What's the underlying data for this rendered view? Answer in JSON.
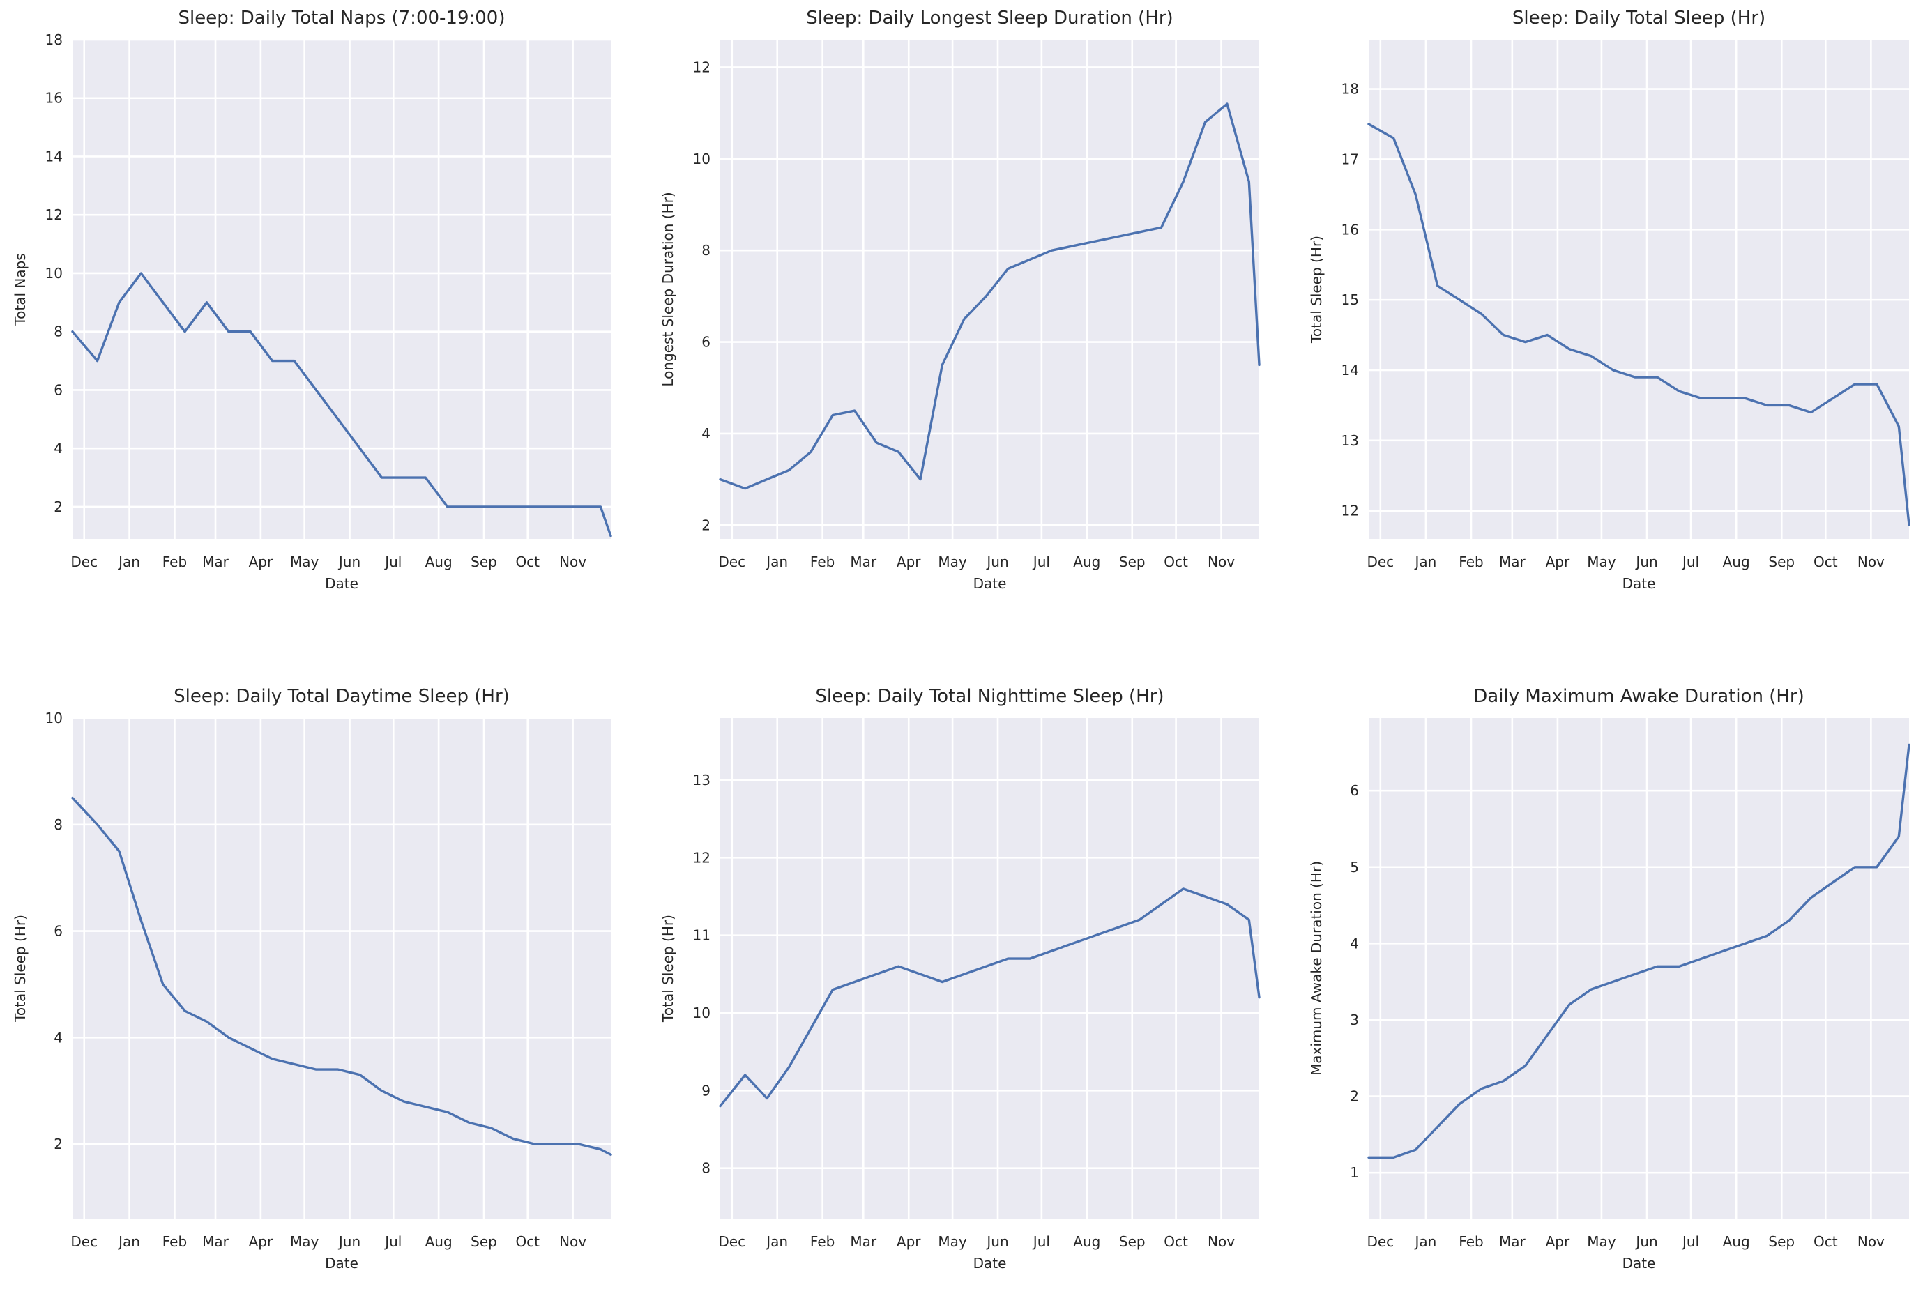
{
  "figure": {
    "background": "#ffffff",
    "plot_background": "#eaeaf2",
    "grid_color": "#ffffff",
    "line_color": "#4c72b0"
  },
  "chart_data": [
    {
      "type": "line",
      "title": "Sleep: Daily Total Naps (7:00-19:00)",
      "xlabel": "Date",
      "ylabel": "Total Naps",
      "xticks": [
        "Dec",
        "Jan",
        "Feb",
        "Mar",
        "Apr",
        "May",
        "Jun",
        "Jul",
        "Aug",
        "Sep",
        "Oct",
        "Nov"
      ],
      "xlim": [
        "2020-11-23",
        "2021-11-27"
      ],
      "yticks": [
        2,
        4,
        6,
        8,
        10,
        12,
        14,
        16,
        18
      ],
      "ylim": [
        0.9,
        18.0
      ],
      "grid": true,
      "series": [
        {
          "x": [
            "2020-11-23",
            "2020-12-10",
            "2020-12-25",
            "2021-01-09",
            "2021-01-24",
            "2021-02-08",
            "2021-02-23",
            "2021-03-10",
            "2021-03-25",
            "2021-04-09",
            "2021-04-24",
            "2021-05-09",
            "2021-05-24",
            "2021-06-08",
            "2021-06-23",
            "2021-07-08",
            "2021-07-23",
            "2021-08-07",
            "2021-08-22",
            "2021-09-06",
            "2021-09-21",
            "2021-10-06",
            "2021-10-21",
            "2021-11-05",
            "2021-11-20",
            "2021-11-27"
          ],
          "y": [
            8,
            7,
            9,
            10,
            9,
            8,
            9,
            8,
            8,
            7,
            7,
            6,
            5,
            4,
            3,
            3,
            3,
            2,
            2,
            2,
            2,
            2,
            2,
            2,
            2,
            1
          ]
        }
      ]
    },
    {
      "type": "line",
      "title": "Sleep: Daily Longest Sleep Duration (Hr)",
      "xlabel": "Date",
      "ylabel": "Longest Sleep Duration (Hr)",
      "xticks": [
        "Dec",
        "Jan",
        "Feb",
        "Mar",
        "Apr",
        "May",
        "Jun",
        "Jul",
        "Aug",
        "Sep",
        "Oct",
        "Nov"
      ],
      "xlim": [
        "2020-11-23",
        "2021-11-27"
      ],
      "yticks": [
        2,
        4,
        6,
        8,
        10,
        12
      ],
      "ylim": [
        1.7,
        12.6
      ],
      "grid": true,
      "series": [
        {
          "x": [
            "2020-11-23",
            "2020-12-10",
            "2020-12-25",
            "2021-01-09",
            "2021-01-24",
            "2021-02-08",
            "2021-02-23",
            "2021-03-10",
            "2021-03-25",
            "2021-04-09",
            "2021-04-24",
            "2021-05-09",
            "2021-05-24",
            "2021-06-08",
            "2021-06-23",
            "2021-07-08",
            "2021-07-23",
            "2021-08-07",
            "2021-08-22",
            "2021-09-06",
            "2021-09-21",
            "2021-10-06",
            "2021-10-21",
            "2021-11-05",
            "2021-11-20",
            "2021-11-27"
          ],
          "y": [
            3.0,
            2.8,
            3.0,
            3.2,
            3.6,
            4.4,
            4.5,
            3.8,
            3.6,
            3.0,
            5.5,
            6.5,
            7.0,
            7.6,
            7.8,
            8.0,
            8.1,
            8.2,
            8.3,
            8.4,
            8.5,
            9.5,
            10.8,
            11.2,
            9.5,
            5.5
          ]
        }
      ]
    },
    {
      "type": "line",
      "title": "Sleep: Daily Total Sleep (Hr)",
      "xlabel": "Date",
      "ylabel": "Total Sleep (Hr)",
      "xticks": [
        "Dec",
        "Jan",
        "Feb",
        "Mar",
        "Apr",
        "May",
        "Jun",
        "Jul",
        "Aug",
        "Sep",
        "Oct",
        "Nov"
      ],
      "xlim": [
        "2020-11-23",
        "2021-11-27"
      ],
      "yticks": [
        12,
        13,
        14,
        15,
        16,
        17,
        18
      ],
      "ylim": [
        11.6,
        18.7
      ],
      "grid": true,
      "series": [
        {
          "x": [
            "2020-11-23",
            "2020-12-10",
            "2020-12-25",
            "2021-01-09",
            "2021-01-24",
            "2021-02-08",
            "2021-02-23",
            "2021-03-10",
            "2021-03-25",
            "2021-04-09",
            "2021-04-24",
            "2021-05-09",
            "2021-05-24",
            "2021-06-08",
            "2021-06-23",
            "2021-07-08",
            "2021-07-23",
            "2021-08-07",
            "2021-08-22",
            "2021-09-06",
            "2021-09-21",
            "2021-10-06",
            "2021-10-21",
            "2021-11-05",
            "2021-11-20",
            "2021-11-27"
          ],
          "y": [
            17.5,
            17.3,
            16.5,
            15.2,
            15.0,
            14.8,
            14.5,
            14.4,
            14.5,
            14.3,
            14.2,
            14.0,
            13.9,
            13.9,
            13.7,
            13.6,
            13.6,
            13.6,
            13.5,
            13.5,
            13.4,
            13.6,
            13.8,
            13.8,
            13.2,
            11.8
          ]
        }
      ]
    },
    {
      "type": "line",
      "title": "Sleep: Daily Total Daytime Sleep (Hr)",
      "xlabel": "Date",
      "ylabel": "Total Sleep (Hr)",
      "xticks": [
        "Dec",
        "Jan",
        "Feb",
        "Mar",
        "Apr",
        "May",
        "Jun",
        "Jul",
        "Aug",
        "Sep",
        "Oct",
        "Nov"
      ],
      "xlim": [
        "2020-11-23",
        "2021-11-27"
      ],
      "yticks": [
        2,
        4,
        6,
        8,
        10
      ],
      "ylim": [
        0.6,
        10.0
      ],
      "grid": true,
      "series": [
        {
          "x": [
            "2020-11-23",
            "2020-12-10",
            "2020-12-25",
            "2021-01-09",
            "2021-01-24",
            "2021-02-08",
            "2021-02-23",
            "2021-03-10",
            "2021-03-25",
            "2021-04-09",
            "2021-04-24",
            "2021-05-09",
            "2021-05-24",
            "2021-06-08",
            "2021-06-23",
            "2021-07-08",
            "2021-07-23",
            "2021-08-07",
            "2021-08-22",
            "2021-09-06",
            "2021-09-21",
            "2021-10-06",
            "2021-10-21",
            "2021-11-05",
            "2021-11-20",
            "2021-11-27"
          ],
          "y": [
            8.5,
            8.0,
            7.5,
            6.2,
            5.0,
            4.5,
            4.3,
            4.0,
            3.8,
            3.6,
            3.5,
            3.4,
            3.4,
            3.3,
            3.0,
            2.8,
            2.7,
            2.6,
            2.4,
            2.3,
            2.1,
            2.0,
            2.0,
            2.0,
            1.9,
            1.8
          ]
        }
      ]
    },
    {
      "type": "line",
      "title": "Sleep: Daily Total Nighttime Sleep (Hr)",
      "xlabel": "Date",
      "ylabel": "Total Sleep (Hr)",
      "xticks": [
        "Dec",
        "Jan",
        "Feb",
        "Mar",
        "Apr",
        "May",
        "Jun",
        "Jul",
        "Aug",
        "Sep",
        "Oct",
        "Nov"
      ],
      "xlim": [
        "2020-11-23",
        "2021-11-27"
      ],
      "yticks": [
        8,
        9,
        10,
        11,
        12,
        13
      ],
      "ylim": [
        7.35,
        13.8
      ],
      "grid": true,
      "series": [
        {
          "x": [
            "2020-11-23",
            "2020-12-10",
            "2020-12-25",
            "2021-01-09",
            "2021-01-24",
            "2021-02-08",
            "2021-02-23",
            "2021-03-10",
            "2021-03-25",
            "2021-04-09",
            "2021-04-24",
            "2021-05-09",
            "2021-05-24",
            "2021-06-08",
            "2021-06-23",
            "2021-07-08",
            "2021-07-23",
            "2021-08-07",
            "2021-08-22",
            "2021-09-06",
            "2021-09-21",
            "2021-10-06",
            "2021-10-21",
            "2021-11-05",
            "2021-11-20",
            "2021-11-27"
          ],
          "y": [
            8.8,
            9.2,
            8.9,
            9.3,
            9.8,
            10.3,
            10.4,
            10.5,
            10.6,
            10.5,
            10.4,
            10.5,
            10.6,
            10.7,
            10.7,
            10.8,
            10.9,
            11.0,
            11.1,
            11.2,
            11.4,
            11.6,
            11.5,
            11.4,
            11.2,
            10.2
          ]
        }
      ]
    },
    {
      "type": "line",
      "title": "Daily Maximum Awake Duration (Hr)",
      "xlabel": "Date",
      "ylabel": "Maximum Awake Duration (Hr)",
      "xticks": [
        "Dec",
        "Jan",
        "Feb",
        "Mar",
        "Apr",
        "May",
        "Jun",
        "Jul",
        "Aug",
        "Sep",
        "Oct",
        "Nov"
      ],
      "xlim": [
        "2020-11-23",
        "2021-11-27"
      ],
      "yticks": [
        1,
        2,
        3,
        4,
        5,
        6
      ],
      "ylim": [
        0.4,
        6.95
      ],
      "grid": true,
      "series": [
        {
          "x": [
            "2020-11-23",
            "2020-12-10",
            "2020-12-25",
            "2021-01-09",
            "2021-01-24",
            "2021-02-08",
            "2021-02-23",
            "2021-03-10",
            "2021-03-25",
            "2021-04-09",
            "2021-04-24",
            "2021-05-09",
            "2021-05-24",
            "2021-06-08",
            "2021-06-23",
            "2021-07-08",
            "2021-07-23",
            "2021-08-07",
            "2021-08-22",
            "2021-09-06",
            "2021-09-21",
            "2021-10-06",
            "2021-10-21",
            "2021-11-05",
            "2021-11-20",
            "2021-11-27"
          ],
          "y": [
            1.2,
            1.2,
            1.3,
            1.6,
            1.9,
            2.1,
            2.2,
            2.4,
            2.8,
            3.2,
            3.4,
            3.5,
            3.6,
            3.7,
            3.7,
            3.8,
            3.9,
            4.0,
            4.1,
            4.3,
            4.6,
            4.8,
            5.0,
            5.0,
            5.4,
            6.6
          ]
        }
      ]
    }
  ]
}
